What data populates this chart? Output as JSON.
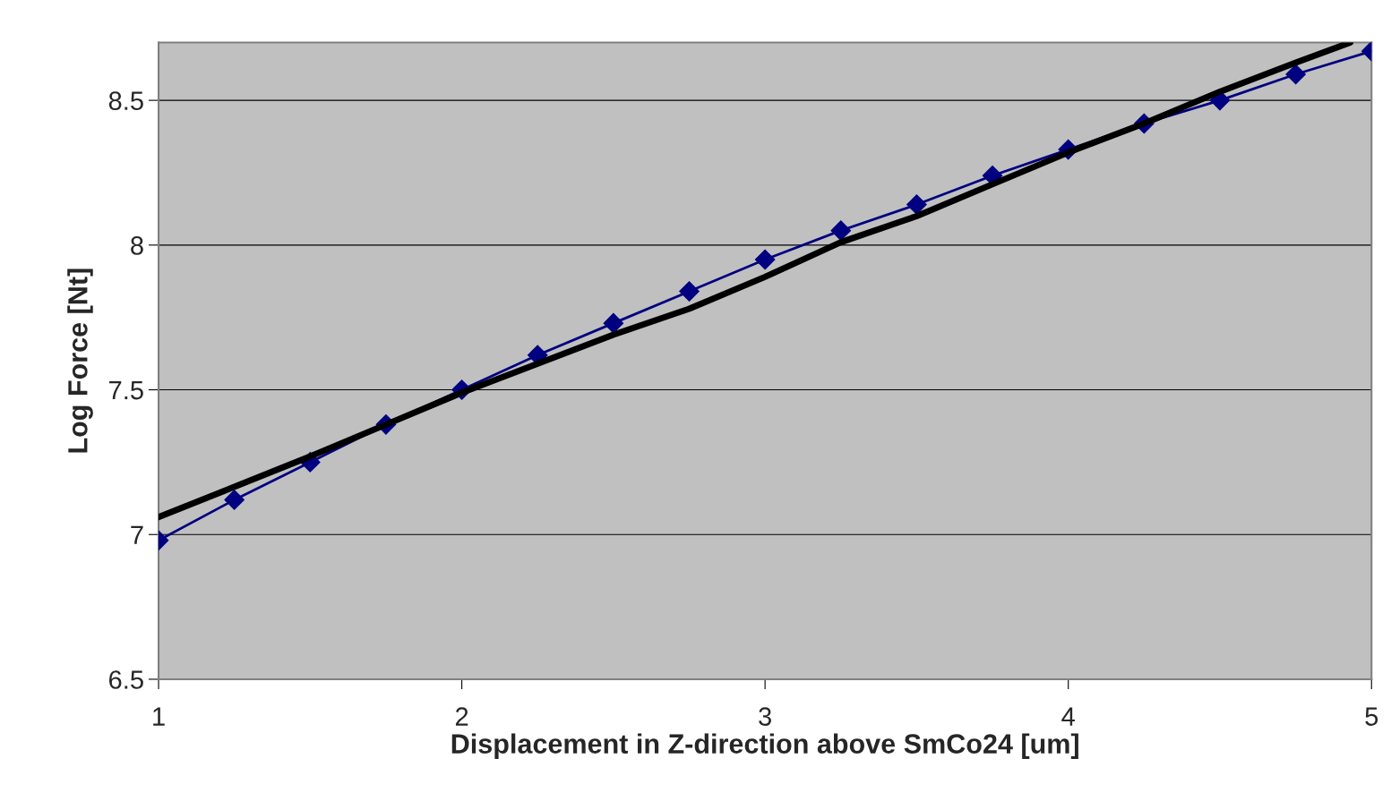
{
  "chart_data": {
    "type": "line",
    "xlabel": "Displacement in Z-direction above SmCo24 [um]",
    "ylabel": "Log Force [Nt]",
    "xlim": [
      1,
      5
    ],
    "xticks": [
      1,
      2,
      3,
      4,
      5
    ],
    "ylim": [
      6.5,
      8.7
    ],
    "yticks": [
      6.5,
      7,
      7.5,
      8,
      8.5
    ],
    "grid": "y",
    "series": [
      {
        "color": "#000080",
        "marker": "diamond",
        "x": [
          1,
          1.25,
          1.5,
          1.75,
          2,
          2.25,
          2.5,
          2.75,
          3,
          3.25,
          3.5,
          3.75,
          4,
          4.25,
          4.5,
          4.75,
          5
        ],
        "values": [
          6.98,
          7.12,
          7.25,
          7.38,
          7.5,
          7.62,
          7.73,
          7.84,
          7.95,
          8.05,
          8.14,
          8.24,
          8.33,
          8.42,
          8.5,
          8.59,
          8.67
        ]
      },
      {
        "color": "#000000",
        "marker": "none",
        "x": [
          1,
          1.5,
          1.75,
          2,
          2.5,
          2.75,
          3,
          3.25,
          3.5,
          3.75,
          4,
          4.25,
          4.5,
          4.75,
          4.93
        ],
        "values": [
          7.06,
          7.27,
          7.38,
          7.49,
          7.69,
          7.78,
          7.89,
          8.01,
          8.1,
          8.21,
          8.32,
          8.42,
          8.53,
          8.63,
          8.7
        ]
      }
    ]
  }
}
